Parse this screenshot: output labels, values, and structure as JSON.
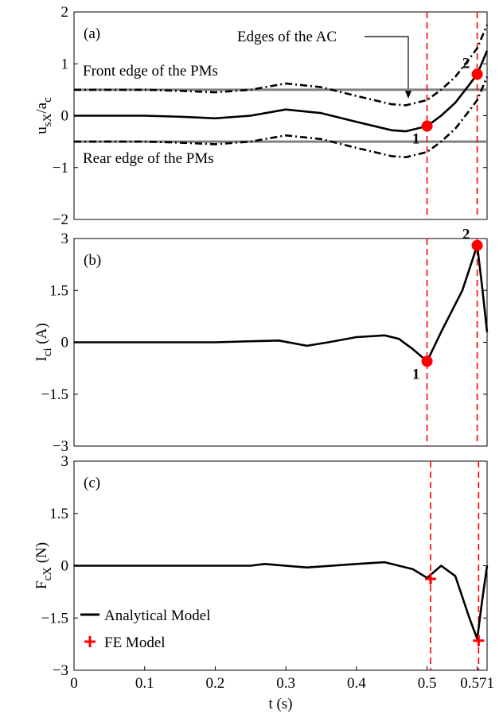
{
  "chart_data": [
    {
      "type": "line",
      "label": "(a)",
      "ylabel": [
        {
          "text": "u"
        },
        {
          "text": "sX",
          "sub": true
        },
        {
          "text": "/a"
        },
        {
          "text": "c",
          "sub": true
        }
      ],
      "xlim": [
        0,
        0.585
      ],
      "ylim": [
        -2,
        2
      ],
      "yticks": [
        {
          "value": -2,
          "label": "−2"
        },
        {
          "value": -1,
          "label": "−1"
        },
        0,
        1,
        2
      ],
      "x": [
        0,
        0.05,
        0.1,
        0.15,
        0.2,
        0.25,
        0.3,
        0.35,
        0.4,
        0.45,
        0.47,
        0.5,
        0.52,
        0.54,
        0.56,
        0.571,
        0.585
      ],
      "series": [
        {
          "color": "#000000",
          "style": "solid",
          "values": [
            0,
            0,
            0,
            -0.02,
            -0.05,
            0,
            0.12,
            0.05,
            -0.12,
            -0.28,
            -0.3,
            -0.2,
            0,
            0.25,
            0.6,
            0.8,
            1.25
          ]
        },
        {
          "color": "#000000",
          "style": "dashdot",
          "values": [
            0.5,
            0.5,
            0.5,
            0.48,
            0.45,
            0.5,
            0.62,
            0.55,
            0.38,
            0.22,
            0.2,
            0.3,
            0.5,
            0.75,
            1.1,
            1.3,
            1.75
          ]
        },
        {
          "color": "#000000",
          "style": "dashdot",
          "values": [
            -0.5,
            -0.5,
            -0.5,
            -0.52,
            -0.55,
            -0.5,
            -0.38,
            -0.45,
            -0.62,
            -0.78,
            -0.8,
            -0.7,
            -0.5,
            -0.25,
            0.1,
            0.3,
            0.75
          ]
        }
      ],
      "hlines": [
        0.5,
        -0.5
      ],
      "hline_color": "#808080",
      "vlines": [
        0.5,
        0.571
      ],
      "vline_color": "#ff0000",
      "points": {
        "marker": "circle",
        "color": "#ff0000",
        "x": [
          0.5,
          0.571
        ],
        "y": [
          -0.2,
          0.8
        ],
        "labels": [
          "1",
          "2"
        ]
      },
      "annotations": [
        "Edges of the AC",
        "Front edge of the PMs",
        "Rear edge of the PMs"
      ]
    },
    {
      "type": "line",
      "label": "(b)",
      "ylabel": [
        {
          "text": "I"
        },
        {
          "text": "ci",
          "sub": true
        },
        {
          "text": " (A)"
        }
      ],
      "xlim": [
        0,
        0.585
      ],
      "ylim": [
        -3,
        3
      ],
      "yticks": [
        {
          "value": -3,
          "label": "−3"
        },
        {
          "value": -1.5,
          "label": "−1.5"
        },
        0,
        1.5,
        3
      ],
      "x": [
        0,
        0.1,
        0.2,
        0.25,
        0.29,
        0.33,
        0.36,
        0.4,
        0.44,
        0.46,
        0.48,
        0.5,
        0.52,
        0.55,
        0.571,
        0.578,
        0.585
      ],
      "series": [
        {
          "color": "#000000",
          "style": "solid",
          "values": [
            0,
            0,
            0,
            0.03,
            0.05,
            -0.1,
            0,
            0.15,
            0.2,
            0.1,
            -0.2,
            -0.55,
            0.3,
            1.5,
            2.8,
            1.6,
            0.3
          ]
        }
      ],
      "vlines": [
        0.5,
        0.571
      ],
      "vline_color": "#ff0000",
      "points": {
        "marker": "circle",
        "color": "#ff0000",
        "x": [
          0.5,
          0.571
        ],
        "y": [
          -0.55,
          2.8
        ],
        "labels": [
          "1",
          "2"
        ]
      }
    },
    {
      "type": "line",
      "label": "(c)",
      "ylabel": [
        {
          "text": "F"
        },
        {
          "text": "cX",
          "sub": true
        },
        {
          "text": " (N)"
        }
      ],
      "xlabel": "t (s)",
      "xlim": [
        0,
        0.585
      ],
      "ylim": [
        -3,
        3
      ],
      "xticks": [
        0,
        0.1,
        0.2,
        0.3,
        0.4,
        0.5,
        0.571
      ],
      "yticks": [
        {
          "value": -3,
          "label": "−3"
        },
        {
          "value": -1.5,
          "label": "−1.5"
        },
        0,
        1.5,
        3
      ],
      "x": [
        0,
        0.1,
        0.2,
        0.25,
        0.27,
        0.33,
        0.4,
        0.44,
        0.48,
        0.5,
        0.52,
        0.54,
        0.56,
        0.571,
        0.578,
        0.585
      ],
      "series": [
        {
          "name": "Analytical Model",
          "color": "#000000",
          "style": "solid",
          "values": [
            0,
            0,
            0,
            0,
            0.05,
            -0.05,
            0.05,
            0.1,
            -0.1,
            -0.35,
            0,
            -0.3,
            -1.5,
            -2.1,
            -1,
            0
          ]
        }
      ],
      "vlines": [
        0.505,
        0.573
      ],
      "vline_color": "#ff0000",
      "points": {
        "name": "FE Model",
        "marker": "plus",
        "color": "#ff0000",
        "x": [
          0.505,
          0.573
        ],
        "y": [
          -0.38,
          -2.15
        ]
      },
      "legend": "lower left"
    }
  ]
}
